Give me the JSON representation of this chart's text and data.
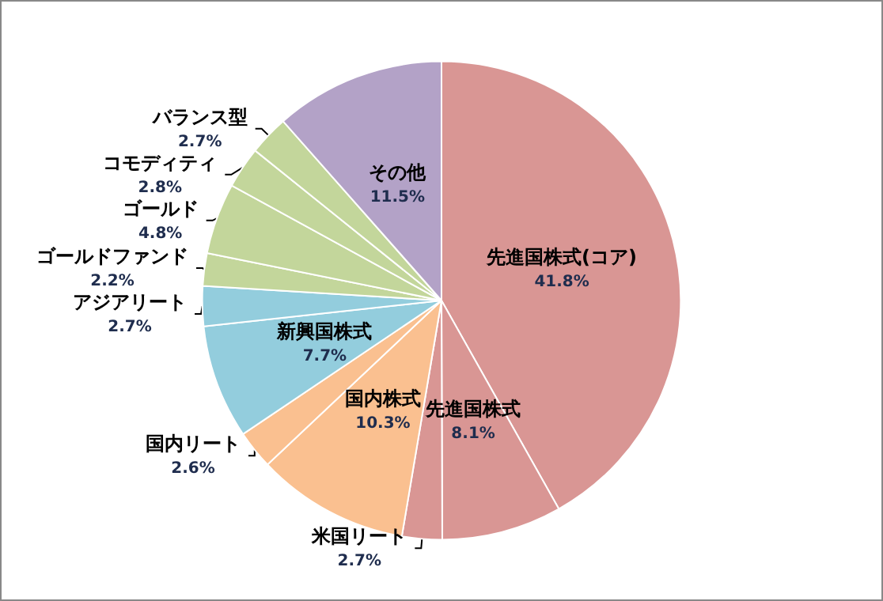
{
  "chart_data": {
    "type": "pie",
    "categories": [
      "先進国株式(コア)",
      "先進国株式",
      "米国リート",
      "国内株式",
      "国内リート",
      "新興国株式",
      "アジアリート",
      "ゴールドファンド",
      "ゴールド",
      "コモディティ",
      "バランス型",
      "その他"
    ],
    "values": [
      41.8,
      8.1,
      2.7,
      10.3,
      2.6,
      7.7,
      2.7,
      2.2,
      4.8,
      2.8,
      2.7,
      11.5
    ],
    "value_labels": [
      "41.8%",
      "8.1%",
      "2.7%",
      "10.3%",
      "2.6%",
      "7.7%",
      "2.7%",
      "2.2%",
      "4.8%",
      "2.8%",
      "2.7%",
      "11.5%"
    ],
    "colors": [
      "#d99694",
      "#d99694",
      "#d99694",
      "#fac090",
      "#fac090",
      "#93cddd",
      "#93cddd",
      "#c3d69b",
      "#c3d69b",
      "#c3d69b",
      "#c3d69b",
      "#b3a2c7"
    ],
    "legend": false
  }
}
